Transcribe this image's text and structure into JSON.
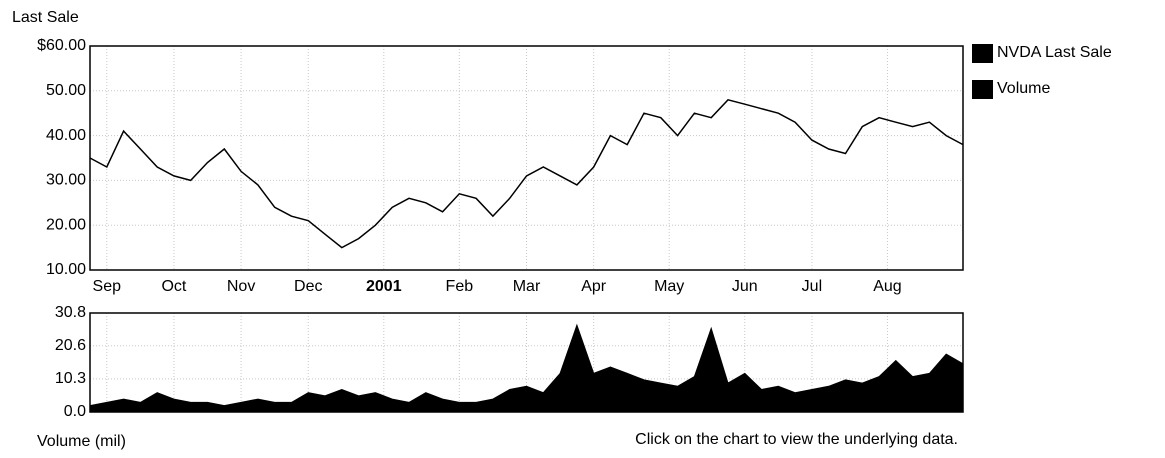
{
  "chart_data": [
    {
      "type": "line",
      "ylabel": "Last Sale",
      "series": [
        {
          "name": "NVDA Last Sale",
          "color": "#000000",
          "values": [
            35,
            33,
            41,
            37,
            33,
            31,
            30,
            34,
            37,
            32,
            29,
            24,
            22,
            21,
            18,
            15,
            17,
            20,
            24,
            26,
            25,
            23,
            27,
            26,
            22,
            26,
            31,
            33,
            31,
            29,
            33,
            40,
            38,
            45,
            44,
            40,
            45,
            44,
            48,
            47,
            46,
            45,
            43,
            39,
            37,
            36,
            42,
            44,
            43,
            42,
            43,
            40,
            38
          ]
        }
      ],
      "xlim": [
        0,
        52
      ],
      "xticks": [
        {
          "value": 1,
          "label": "Sep"
        },
        {
          "value": 5,
          "label": "Oct"
        },
        {
          "value": 9,
          "label": "Nov"
        },
        {
          "value": 13,
          "label": "Dec"
        },
        {
          "value": 17.5,
          "label": "2001"
        },
        {
          "value": 22,
          "label": "Feb"
        },
        {
          "value": 26,
          "label": "Mar"
        },
        {
          "value": 30,
          "label": "Apr"
        },
        {
          "value": 34.5,
          "label": "May"
        },
        {
          "value": 39,
          "label": "Jun"
        },
        {
          "value": 43,
          "label": "Jul"
        },
        {
          "value": 47.5,
          "label": "Aug"
        }
      ],
      "ylim": [
        10,
        60
      ],
      "yticks": [
        {
          "value": 10,
          "label": "10.00"
        },
        {
          "value": 20,
          "label": "20.00"
        },
        {
          "value": 30,
          "label": "30.00"
        },
        {
          "value": 40,
          "label": "40.00"
        },
        {
          "value": 50,
          "label": "50.00"
        },
        {
          "value": 60,
          "label": "$60.00"
        }
      ],
      "grid": true
    },
    {
      "type": "area",
      "ylabel": "Volume (mil)",
      "series": [
        {
          "name": "Volume",
          "color": "#000000",
          "values": [
            2,
            3,
            4,
            3,
            6,
            4,
            3,
            3,
            2,
            3,
            4,
            3,
            3,
            6,
            5,
            7,
            5,
            6,
            4,
            3,
            6,
            4,
            3,
            3,
            4,
            7,
            8,
            6,
            12,
            27,
            12,
            14,
            12,
            10,
            9,
            8,
            11,
            26,
            9,
            12,
            7,
            8,
            6,
            7,
            8,
            10,
            9,
            11,
            16,
            11,
            12,
            18,
            15
          ]
        }
      ],
      "xlim": [
        0,
        52
      ],
      "ylim": [
        0,
        30.8
      ],
      "yticks": [
        {
          "value": 0,
          "label": "0.0"
        },
        {
          "value": 10.3,
          "label": "10.3"
        },
        {
          "value": 20.6,
          "label": "20.6"
        },
        {
          "value": 30.8,
          "label": "30.8"
        }
      ],
      "grid": true
    }
  ],
  "footer": "Click on the chart to view the underlying data."
}
